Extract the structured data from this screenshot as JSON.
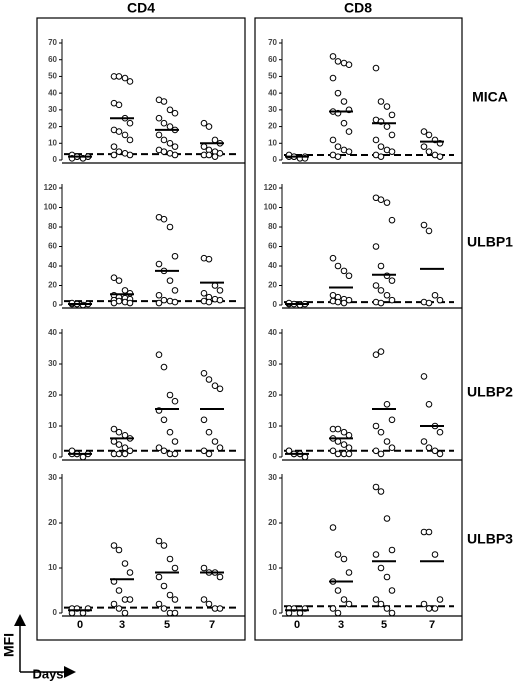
{
  "columns": [
    "CD4",
    "CD8"
  ],
  "rows": [
    "MICA",
    "ULBP1",
    "ULBP2",
    "ULBP3"
  ],
  "days": [
    "0",
    "3",
    "5",
    "7"
  ],
  "ylabel": "MFI",
  "xlabel": "Days",
  "chart_data": [
    {
      "type": "dotplot",
      "ylim": [
        0,
        70
      ],
      "yticks": [
        0,
        10,
        20,
        30,
        40,
        50,
        60,
        70
      ],
      "threshold": 3.5,
      "points": [
        [
          2,
          2,
          1,
          2,
          3,
          2,
          1,
          2,
          1,
          2
        ],
        [
          50,
          50,
          49,
          47,
          34,
          33,
          25,
          22,
          18,
          17,
          15,
          12,
          8,
          5,
          4,
          3,
          3
        ],
        [
          36,
          35,
          30,
          28,
          25,
          22,
          20,
          18,
          15,
          12,
          10,
          8,
          6,
          5,
          4,
          3
        ],
        [
          22,
          20,
          12,
          10,
          8,
          6,
          5,
          4,
          3,
          3,
          2
        ]
      ],
      "means": [
        2,
        25,
        18,
        10
      ]
    },
    {
      "type": "dotplot",
      "ylim": [
        0,
        120
      ],
      "yticks": [
        0,
        20,
        40,
        60,
        80,
        100,
        120
      ],
      "threshold": 4,
      "points": [
        [
          1,
          1,
          0,
          1,
          2,
          1
        ],
        [
          28,
          25,
          15,
          12,
          10,
          8,
          7,
          6,
          5,
          4,
          3,
          2,
          2
        ],
        [
          90,
          88,
          80,
          50,
          42,
          35,
          25,
          15,
          10,
          5,
          4,
          3,
          2
        ],
        [
          48,
          47,
          20,
          15,
          12,
          8,
          6,
          5,
          4,
          3
        ]
      ],
      "means": [
        1,
        11,
        35,
        23
      ]
    },
    {
      "type": "dotplot",
      "ylim": [
        0,
        40
      ],
      "yticks": [
        0,
        10,
        20,
        30,
        40
      ],
      "threshold": 2,
      "points": [
        [
          1,
          1,
          0,
          1,
          2,
          1
        ],
        [
          9,
          8,
          7,
          6,
          5,
          4,
          3,
          2,
          1,
          1,
          1
        ],
        [
          33,
          29,
          20,
          18,
          15,
          12,
          8,
          5,
          3,
          2,
          1,
          1
        ],
        [
          27,
          25,
          23,
          22,
          12,
          8,
          5,
          3,
          2,
          1
        ]
      ],
      "means": [
        1,
        6,
        15.5,
        15.5
      ]
    },
    {
      "type": "dotplot",
      "ylim": [
        0,
        30
      ],
      "yticks": [
        0,
        10,
        20,
        30
      ],
      "threshold": 1.2,
      "points": [
        [
          1,
          1,
          0,
          1,
          0
        ],
        [
          15,
          14,
          11,
          9,
          7,
          5,
          3,
          3,
          2,
          1,
          0
        ],
        [
          16,
          15,
          12,
          10,
          8,
          6,
          4,
          3,
          2,
          1,
          0,
          0
        ],
        [
          10,
          9,
          9,
          8,
          3,
          2,
          1,
          1
        ]
      ],
      "means": [
        0.6,
        7.5,
        9,
        9
      ]
    },
    {
      "type": "dotplot",
      "ylim": [
        0,
        70
      ],
      "yticks": [
        0,
        10,
        20,
        30,
        40,
        50,
        60,
        70
      ],
      "threshold": 3,
      "points": [
        [
          2,
          2,
          1,
          2,
          3,
          2,
          1,
          1
        ],
        [
          62,
          59,
          58,
          57,
          49,
          40,
          35,
          30,
          29,
          28,
          22,
          17,
          12,
          8,
          6,
          5,
          3,
          2
        ],
        [
          55,
          35,
          32,
          27,
          24,
          23,
          20,
          15,
          12,
          8,
          6,
          5,
          3,
          2
        ],
        [
          17,
          15,
          12,
          10,
          8,
          5,
          3,
          2
        ]
      ],
      "means": [
        2,
        29,
        22,
        11
      ]
    },
    {
      "type": "dotplot",
      "ylim": [
        0,
        120
      ],
      "yticks": [
        0,
        20,
        40,
        60,
        80,
        100,
        120
      ],
      "threshold": 3,
      "points": [
        [
          1,
          1,
          0,
          1,
          2
        ],
        [
          48,
          40,
          35,
          30,
          10,
          8,
          6,
          5,
          4,
          3,
          2
        ],
        [
          110,
          108,
          105,
          87,
          60,
          40,
          30,
          25,
          20,
          15,
          10,
          5,
          3,
          2
        ],
        [
          82,
          76,
          10,
          5,
          3,
          2
        ]
      ],
      "means": [
        1,
        18,
        31,
        37
      ]
    },
    {
      "type": "dotplot",
      "ylim": [
        0,
        40
      ],
      "yticks": [
        0,
        10,
        20,
        30,
        40
      ],
      "threshold": 2,
      "points": [
        [
          2,
          1,
          1,
          0,
          2,
          1,
          1
        ],
        [
          9,
          9,
          8,
          7,
          6,
          5,
          4,
          3,
          2,
          1,
          1,
          1
        ],
        [
          33,
          34,
          17,
          12,
          10,
          8,
          5,
          3,
          2,
          1
        ],
        [
          26,
          17,
          10,
          8,
          5,
          3,
          2,
          1
        ]
      ],
      "means": [
        1,
        6,
        15.5,
        10
      ]
    },
    {
      "type": "dotplot",
      "ylim": [
        0,
        30
      ],
      "yticks": [
        0,
        10,
        20,
        30
      ],
      "threshold": 1.5,
      "points": [
        [
          1,
          1,
          0,
          1,
          0
        ],
        [
          19,
          13,
          12,
          9,
          7,
          5,
          3,
          2,
          1,
          0
        ],
        [
          28,
          27,
          21,
          14,
          13,
          10,
          8,
          5,
          3,
          2,
          1,
          0
        ],
        [
          18,
          18,
          13,
          3,
          2,
          1,
          1
        ]
      ],
      "means": [
        0.6,
        7,
        11.5,
        11.5
      ]
    }
  ]
}
